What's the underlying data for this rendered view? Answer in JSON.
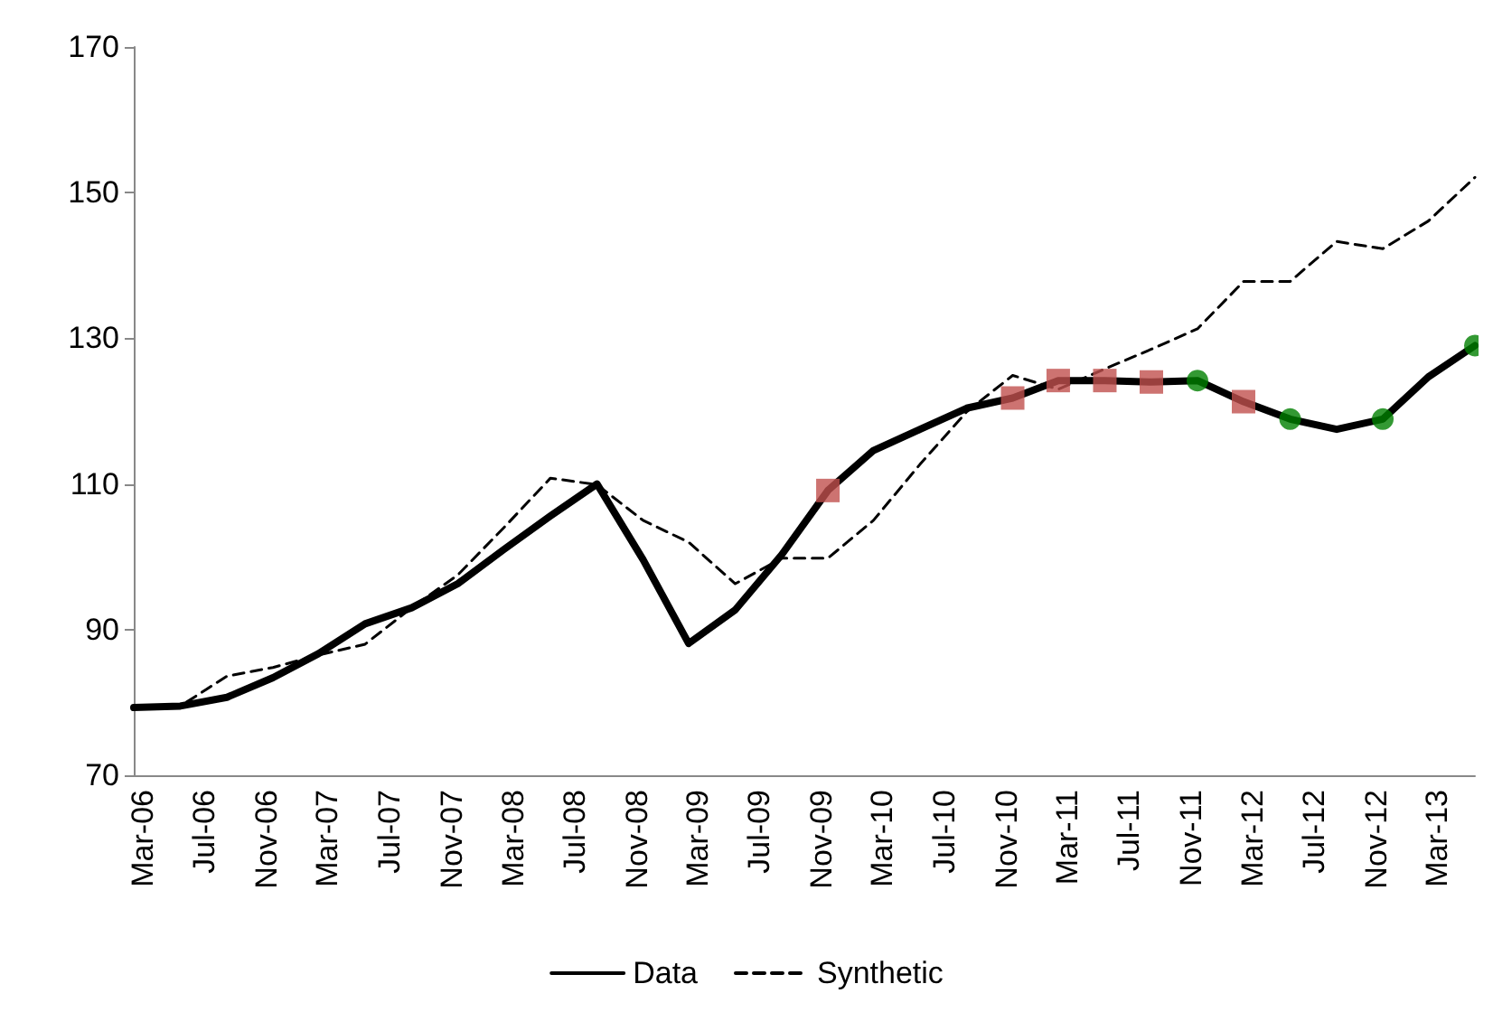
{
  "chart_data": {
    "type": "line",
    "x": [
      "2006-03",
      "2006-06",
      "2006-09",
      "2006-12",
      "2007-03",
      "2007-06",
      "2007-09",
      "2007-12",
      "2008-03",
      "2008-06",
      "2008-09",
      "2008-12",
      "2009-03",
      "2009-06",
      "2009-09",
      "2009-12",
      "2010-03",
      "2010-06",
      "2010-09",
      "2010-12",
      "2011-03",
      "2011-06",
      "2011-09",
      "2011-12",
      "2012-03",
      "2012-06",
      "2012-09",
      "2012-12",
      "2013-03",
      "2013-06"
    ],
    "series": [
      {
        "name": "Data",
        "color": "#000000",
        "line_style": "solid",
        "marker": "none",
        "values": [
          79.3,
          79.5,
          80.7,
          83.4,
          86.7,
          90.8,
          93,
          96.3,
          101,
          105.6,
          110,
          99.6,
          88.1,
          92.7,
          100.3,
          109.1,
          114.6,
          117.5,
          120.4,
          121.8,
          124.2,
          124.2,
          124,
          124.2,
          121.3,
          118.9,
          117.5,
          118.9,
          124.7,
          129
        ]
      },
      {
        "name": "Synthetic",
        "color": "#000000",
        "line_style": "dashed",
        "marker": "none",
        "values": [
          79.3,
          79.5,
          83.6,
          84.8,
          86.5,
          88,
          93,
          97.5,
          104,
          110.8,
          109.9,
          105,
          102,
          96.3,
          99.8,
          99.8,
          105,
          112.7,
          119.9,
          124.9,
          123,
          125.8,
          128.5,
          131.3,
          137.8,
          137.8,
          143.3,
          142.3,
          146.1,
          152.1
        ]
      },
      {
        "type": "scatter",
        "color": "#c0504d",
        "marker": "square",
        "values": [
          null,
          null,
          null,
          null,
          null,
          null,
          null,
          null,
          null,
          null,
          null,
          null,
          null,
          null,
          null,
          109.1,
          null,
          null,
          null,
          121.8,
          124.2,
          124.2,
          124,
          null,
          121.3,
          null,
          null,
          null,
          null,
          null
        ]
      },
      {
        "type": "scatter",
        "color": "#008000",
        "marker": "circle",
        "values": [
          null,
          null,
          null,
          null,
          null,
          null,
          null,
          null,
          null,
          null,
          null,
          null,
          null,
          null,
          null,
          null,
          null,
          null,
          null,
          null,
          null,
          null,
          null,
          124.2,
          null,
          118.9,
          null,
          118.9,
          null,
          129
        ]
      }
    ],
    "xlim": [
      "2006-03",
      "2013-06"
    ],
    "xticks": [
      {
        "value": "2006-03",
        "label": "Mar-06"
      },
      {
        "value": "2006-07",
        "label": "Jul-06"
      },
      {
        "value": "2006-11",
        "label": "Nov-06"
      },
      {
        "value": "2007-03",
        "label": "Mar-07"
      },
      {
        "value": "2007-07",
        "label": "Jul-07"
      },
      {
        "value": "2007-11",
        "label": "Nov-07"
      },
      {
        "value": "2008-03",
        "label": "Mar-08"
      },
      {
        "value": "2008-07",
        "label": "Jul-08"
      },
      {
        "value": "2008-11",
        "label": "Nov-08"
      },
      {
        "value": "2009-03",
        "label": "Mar-09"
      },
      {
        "value": "2009-07",
        "label": "Jul-09"
      },
      {
        "value": "2009-11",
        "label": "Nov-09"
      },
      {
        "value": "2010-03",
        "label": "Mar-10"
      },
      {
        "value": "2010-07",
        "label": "Jul-10"
      },
      {
        "value": "2010-11",
        "label": "Nov-10"
      },
      {
        "value": "2011-03",
        "label": "Mar-11"
      },
      {
        "value": "2011-07",
        "label": "Jul-11"
      },
      {
        "value": "2011-11",
        "label": "Nov-11"
      },
      {
        "value": "2012-03",
        "label": "Mar-12"
      },
      {
        "value": "2012-07",
        "label": "Jul-12"
      },
      {
        "value": "2012-11",
        "label": "Nov-12"
      },
      {
        "value": "2013-03",
        "label": "Mar-13"
      }
    ],
    "ylim": [
      70,
      170
    ],
    "yticks": [
      70,
      90,
      110,
      130,
      150,
      170
    ],
    "grid": false,
    "legend": "bottom"
  }
}
